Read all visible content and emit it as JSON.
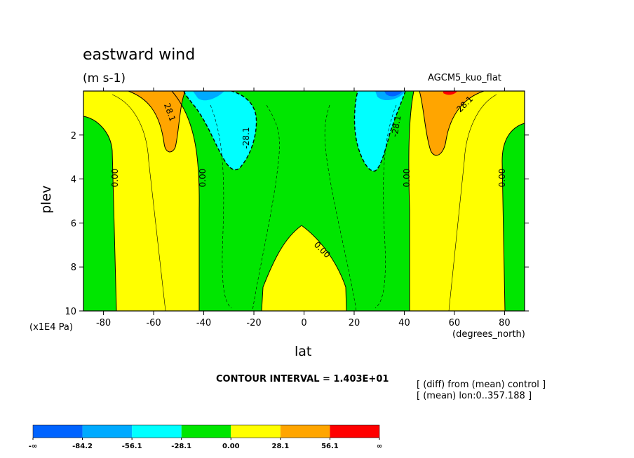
{
  "chart_data": {
    "type": "heatmap",
    "title": "eastward wind",
    "units": "(m s-1)",
    "model_label": "AGCM5_kuo_flat",
    "xlabel": "lat",
    "x_units": "(degrees_north)",
    "ylabel": "plev",
    "y_units": "(x1E4 Pa)",
    "xlim": [
      -88,
      88
    ],
    "ylim": [
      10,
      0
    ],
    "x_ticks": [
      -80,
      -60,
      -40,
      -20,
      0,
      20,
      40,
      60,
      80
    ],
    "x_tick_labels": [
      "-80",
      "-60",
      "-40",
      "-20",
      "0",
      "20",
      "40",
      "60",
      "80"
    ],
    "y_ticks": [
      2,
      4,
      6,
      8,
      10
    ],
    "y_tick_labels": [
      "2",
      "4",
      "6",
      "8",
      "10"
    ],
    "contour_interval_label": "CONTOUR INTERVAL = 1.403E+01",
    "notes": [
      "[ (diff) from (mean) control ]",
      "[ (mean) lon:0..357.188 ]"
    ],
    "contour_labels": [
      "0.00",
      "0.00",
      "0.00",
      "0.00",
      "0.00",
      "-28.1",
      "-28.1",
      "28.1",
      "28.1"
    ],
    "colorbar": {
      "boundaries": [
        "-∞",
        "-84.2",
        "-56.1",
        "-28.1",
        "0.00",
        "28.1",
        "56.1",
        "∞"
      ],
      "colors": [
        "#0063ff",
        "#00aaff",
        "#00ffff",
        "#00e600",
        "#ffff00",
        "#ffa500",
        "#ff0000"
      ]
    },
    "regions": [
      {
        "level": "0 to 28.1",
        "color": "#ffff00",
        "lat_range": [
          -88,
          88
        ],
        "plev_range": [
          0,
          10
        ]
      },
      {
        "level": "-28.1 to 0",
        "color": "#00e600",
        "lat_range": [
          -88,
          -75
        ],
        "plev_range": [
          1.1,
          10
        ]
      },
      {
        "level": "-28.1 to 0",
        "color": "#00e600",
        "lat_range": [
          -42,
          48
        ],
        "plev_range": [
          0,
          10
        ]
      },
      {
        "level": "-28.1 to 0",
        "color": "#00e600",
        "lat_range": [
          75,
          88
        ],
        "plev_range": [
          1.3,
          10
        ]
      },
      {
        "level": "0 to 28.1",
        "color": "#ffff00",
        "lat_range": [
          -18,
          18
        ],
        "plev_range": [
          6.2,
          10
        ]
      },
      {
        "level": "28.1 to 56.1",
        "color": "#ffa500",
        "lat_range": [
          -62,
          -50
        ],
        "plev_range": [
          0,
          2.8
        ]
      },
      {
        "level": "28.1 to 56.1",
        "color": "#ffa500",
        "lat_range": [
          50,
          62
        ],
        "plev_range": [
          0,
          2.9
        ]
      },
      {
        "level": "-56.1 to -28.1",
        "color": "#00ffff",
        "lat_range": [
          -42,
          -18
        ],
        "plev_range": [
          0,
          3.6
        ]
      },
      {
        "level": "-56.1 to -28.1",
        "color": "#00ffff",
        "lat_range": [
          18,
          42
        ],
        "plev_range": [
          0,
          3.6
        ]
      }
    ]
  }
}
